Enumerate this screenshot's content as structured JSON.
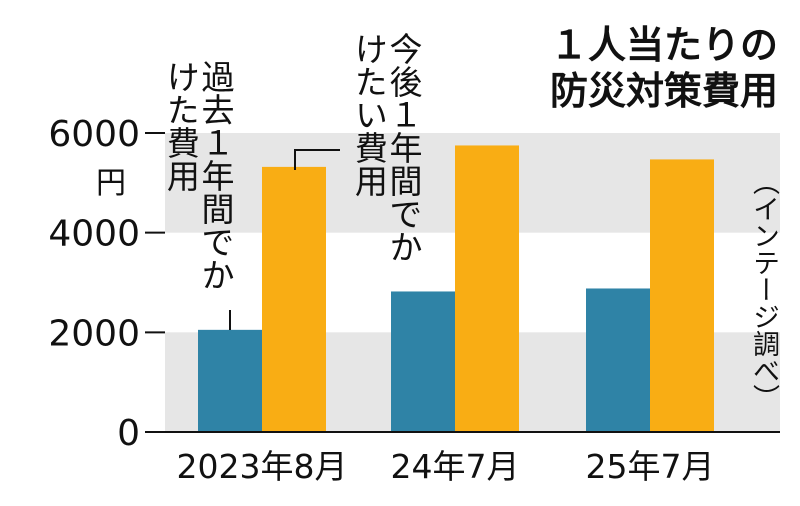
{
  "title_lines": [
    "１人当たりの",
    "防災対策費用"
  ],
  "unit": "円",
  "source": "（インテージ調べ）",
  "annotations": {
    "past": "過去１年間でかけた費用",
    "future": "今後１年間でかけたい費用"
  },
  "colors": {
    "past": "#2f83a6",
    "future": "#f9ad14",
    "band": "#e6e6e6"
  },
  "chart_data": {
    "type": "bar",
    "title": "１人当たりの防災対策費用",
    "categories": [
      "2023年8月",
      "24年7月",
      "25年7月"
    ],
    "series": [
      {
        "name": "過去１年間でかけた費用",
        "values": [
          2050,
          2820,
          2880
        ]
      },
      {
        "name": "今後１年間でかけたい費用",
        "values": [
          5320,
          5750,
          5470
        ]
      }
    ],
    "yticks": [
      0,
      2000,
      4000,
      6000
    ],
    "ylabel": "円",
    "ylim": [
      0,
      6000
    ],
    "grid": "alternating horizontal bands"
  }
}
